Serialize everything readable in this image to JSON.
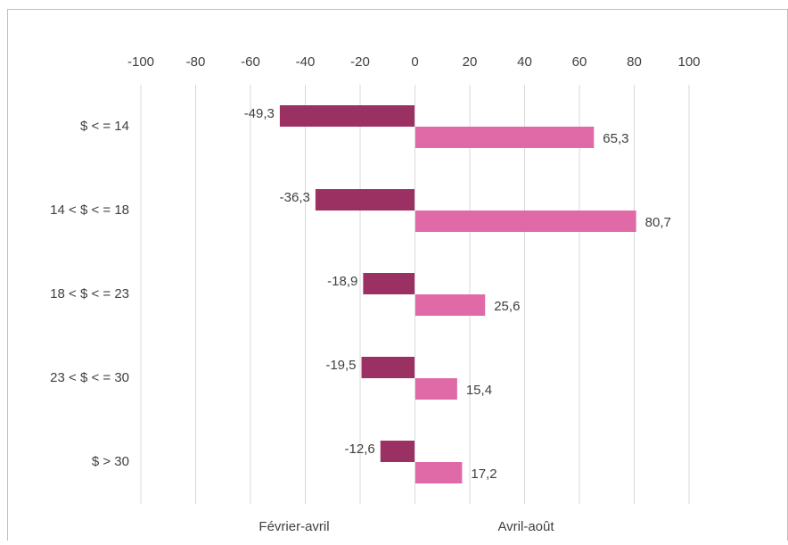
{
  "chart_data": {
    "type": "bar",
    "orientation": "horizontal",
    "categories": [
      "$ < = 14",
      "14  < $ < = 18",
      "18  < $ < = 23",
      "23  < $ < = 30",
      "$ > 30"
    ],
    "series": [
      {
        "name": "Février-avril",
        "color": "#9b3162",
        "values": [
          -49.3,
          -36.3,
          -18.9,
          -19.5,
          -12.6
        ],
        "value_labels": [
          "-49,3",
          "-36,3",
          "-18,9",
          "-19,5",
          "-12,6"
        ]
      },
      {
        "name": "Avril-août",
        "color": "#e06aa8",
        "values": [
          65.3,
          80.7,
          25.6,
          15.4,
          17.2
        ],
        "value_labels": [
          "65,3",
          "80,7",
          "25,6",
          "15,4",
          "17,2"
        ]
      }
    ],
    "xlim": [
      -100,
      100
    ],
    "xticks": [
      -100,
      -80,
      -60,
      -40,
      -20,
      0,
      20,
      40,
      60,
      80,
      100
    ],
    "grid": true,
    "legend": "bottom"
  }
}
